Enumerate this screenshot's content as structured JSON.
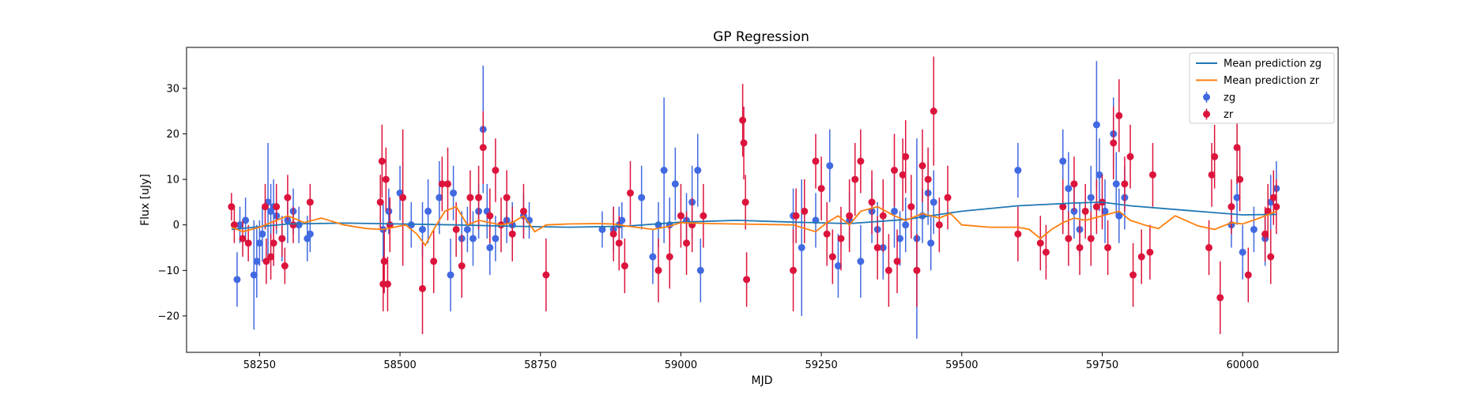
{
  "chart_data": {
    "type": "scatter",
    "title": "GP Regression",
    "xlabel": "MJD",
    "ylabel": "Flux [uJy]",
    "xlim": [
      58120,
      60170
    ],
    "ylim": [
      -28,
      39
    ],
    "xticks": [
      58250,
      58500,
      58750,
      59000,
      59250,
      59500,
      59750,
      60000
    ],
    "yticks": [
      -20,
      -10,
      0,
      10,
      20,
      30
    ],
    "grid": false,
    "legend": {
      "placement": "top-right",
      "entries": [
        {
          "label": "Mean prediction zg",
          "kind": "line",
          "color": "#1f77b4"
        },
        {
          "label": "Mean prediction zr",
          "kind": "line",
          "color": "#ff7f0e"
        },
        {
          "label": "zg",
          "kind": "errorbar",
          "color": "#4169e1"
        },
        {
          "label": "zr",
          "kind": "errorbar",
          "color": "#dc143c"
        }
      ]
    },
    "series": [
      {
        "name": "Mean prediction zg",
        "kind": "line",
        "color": "#1f77b4",
        "x": [
          58200,
          58300,
          58400,
          58500,
          58600,
          58700,
          58800,
          58900,
          59000,
          59100,
          59200,
          59300,
          59400,
          59500,
          59600,
          59700,
          59750,
          59800,
          59900,
          60000,
          60060
        ],
        "y": [
          -1.0,
          0.2,
          0.4,
          0.2,
          0.0,
          -0.3,
          -0.5,
          -0.3,
          0.6,
          1.0,
          0.6,
          0.3,
          1.2,
          3.0,
          4.2,
          4.8,
          5.0,
          4.2,
          3.2,
          2.2,
          2.3
        ]
      },
      {
        "name": "Mean prediction zr",
        "kind": "line",
        "color": "#ff7f0e",
        "x": [
          58200,
          58220,
          58250,
          58280,
          58300,
          58330,
          58360,
          58400,
          58440,
          58470,
          58490,
          58510,
          58530,
          58545,
          58560,
          58580,
          58600,
          58620,
          58640,
          58660,
          58680,
          58700,
          58720,
          58740,
          58760,
          58800,
          58850,
          58880,
          58900,
          58920,
          58950,
          58980,
          59000,
          59050,
          59100,
          59150,
          59200,
          59240,
          59260,
          59280,
          59300,
          59320,
          59350,
          59380,
          59400,
          59430,
          59460,
          59480,
          59500,
          59550,
          59600,
          59620,
          59640,
          59660,
          59680,
          59700,
          59720,
          59750,
          59780,
          59800,
          59830,
          59850,
          59880,
          59920,
          59950,
          59980,
          60000,
          60030,
          60060
        ],
        "y": [
          -0.5,
          -1.5,
          -0.5,
          1.0,
          2.0,
          0.5,
          1.5,
          0.0,
          -0.8,
          -1.0,
          -0.5,
          0.0,
          -2.0,
          -4.5,
          -1.0,
          3.0,
          4.0,
          0.0,
          1.0,
          0.5,
          0.0,
          0.5,
          2.0,
          -1.5,
          0.0,
          0.2,
          0.3,
          0.2,
          -0.2,
          -0.5,
          -1.0,
          -0.3,
          0.5,
          0.3,
          0.2,
          0.1,
          0.0,
          -1.5,
          0.5,
          2.0,
          0.0,
          3.0,
          4.0,
          2.0,
          1.0,
          2.5,
          1.5,
          2.5,
          0.0,
          -0.5,
          -0.5,
          -1.0,
          -3.0,
          -1.0,
          0.5,
          1.5,
          1.0,
          2.0,
          3.0,
          1.0,
          -0.2,
          -0.8,
          2.0,
          -0.2,
          -1.0,
          0.5,
          0.2,
          1.5,
          3.0
        ]
      },
      {
        "name": "zg",
        "kind": "errorbar",
        "color": "#4169e1",
        "points": [
          [
            58210,
            -12,
            6
          ],
          [
            58215,
            0,
            4
          ],
          [
            58225,
            1,
            5
          ],
          [
            58240,
            -11,
            12
          ],
          [
            58245,
            -8,
            8
          ],
          [
            58250,
            -4,
            5
          ],
          [
            58255,
            -2,
            6
          ],
          [
            58265,
            5,
            13
          ],
          [
            58270,
            3,
            6
          ],
          [
            58275,
            4,
            6
          ],
          [
            58280,
            2,
            4
          ],
          [
            58290,
            -3,
            5
          ],
          [
            58300,
            1,
            5
          ],
          [
            58310,
            3,
            5
          ],
          [
            58320,
            0,
            4
          ],
          [
            58335,
            -3,
            5
          ],
          [
            58340,
            -2,
            4
          ],
          [
            58470,
            -1,
            6
          ],
          [
            58480,
            3,
            5
          ],
          [
            58500,
            7,
            6
          ],
          [
            58520,
            0,
            5
          ],
          [
            58540,
            -1,
            6
          ],
          [
            58550,
            3,
            7
          ],
          [
            58570,
            6,
            8
          ],
          [
            58590,
            -11,
            8
          ],
          [
            58595,
            7,
            6
          ],
          [
            58610,
            -3,
            6
          ],
          [
            58620,
            -1,
            5
          ],
          [
            58630,
            -3,
            6
          ],
          [
            58640,
            3,
            6
          ],
          [
            58648,
            21,
            14
          ],
          [
            58655,
            3,
            6
          ],
          [
            58660,
            -5,
            6
          ],
          [
            58670,
            -3,
            5
          ],
          [
            58690,
            1,
            5
          ],
          [
            58700,
            0,
            5
          ],
          [
            58720,
            2,
            5
          ],
          [
            58730,
            1,
            4
          ],
          [
            58860,
            -1,
            4
          ],
          [
            58880,
            -1,
            5
          ],
          [
            58890,
            0,
            4
          ],
          [
            58895,
            1,
            4
          ],
          [
            58930,
            6,
            7
          ],
          [
            58950,
            -7,
            6
          ],
          [
            58960,
            0,
            5
          ],
          [
            58970,
            12,
            16
          ],
          [
            58980,
            0,
            6
          ],
          [
            58990,
            9,
            8
          ],
          [
            59010,
            1,
            6
          ],
          [
            59020,
            5,
            8
          ],
          [
            59030,
            12,
            8
          ],
          [
            59035,
            -10,
            7
          ],
          [
            59200,
            2,
            6
          ],
          [
            59215,
            -5,
            15
          ],
          [
            59240,
            1,
            6
          ],
          [
            59265,
            13,
            8
          ],
          [
            59280,
            -9,
            7
          ],
          [
            59300,
            1,
            6
          ],
          [
            59320,
            -8,
            8
          ],
          [
            59340,
            3,
            7
          ],
          [
            59350,
            -1,
            6
          ],
          [
            59360,
            -5,
            7
          ],
          [
            59380,
            3,
            8
          ],
          [
            59390,
            -3,
            6
          ],
          [
            59400,
            0,
            6
          ],
          [
            59420,
            -3,
            22
          ],
          [
            59430,
            2,
            6
          ],
          [
            59440,
            7,
            7
          ],
          [
            59445,
            -4,
            6
          ],
          [
            59450,
            5,
            7
          ],
          [
            59600,
            12,
            6
          ],
          [
            59680,
            14,
            7
          ],
          [
            59690,
            8,
            8
          ],
          [
            59700,
            3,
            6
          ],
          [
            59710,
            -1,
            6
          ],
          [
            59730,
            6,
            7
          ],
          [
            59740,
            22,
            14
          ],
          [
            59745,
            11,
            8
          ],
          [
            59755,
            3,
            7
          ],
          [
            59770,
            20,
            8
          ],
          [
            59775,
            9,
            7
          ],
          [
            59780,
            2,
            6
          ],
          [
            59790,
            6,
            7
          ],
          [
            59980,
            0,
            5
          ],
          [
            59990,
            6,
            6
          ],
          [
            60000,
            -6,
            6
          ],
          [
            60020,
            -1,
            5
          ],
          [
            60040,
            -3,
            6
          ],
          [
            60050,
            5,
            6
          ],
          [
            60060,
            8,
            6
          ]
        ]
      },
      {
        "name": "zr",
        "kind": "errorbar",
        "color": "#dc143c",
        "points": [
          [
            58200,
            4,
            3
          ],
          [
            58205,
            0,
            4
          ],
          [
            58220,
            -3,
            4
          ],
          [
            58230,
            -4,
            4
          ],
          [
            58260,
            4,
            5
          ],
          [
            58262,
            -8,
            5
          ],
          [
            58270,
            -7,
            5
          ],
          [
            58275,
            -4,
            5
          ],
          [
            58280,
            4,
            5
          ],
          [
            58290,
            -3,
            4
          ],
          [
            58295,
            -9,
            4
          ],
          [
            58300,
            6,
            5
          ],
          [
            58310,
            0,
            4
          ],
          [
            58340,
            5,
            4
          ],
          [
            58465,
            5,
            6
          ],
          [
            58468,
            14,
            8
          ],
          [
            58470,
            -13,
            6
          ],
          [
            58472,
            -8,
            7
          ],
          [
            58475,
            10,
            7
          ],
          [
            58478,
            -13,
            6
          ],
          [
            58482,
            0,
            6
          ],
          [
            58505,
            6,
            15
          ],
          [
            58540,
            -14,
            10
          ],
          [
            58560,
            -8,
            7
          ],
          [
            58575,
            9,
            6
          ],
          [
            58585,
            9,
            8
          ],
          [
            58600,
            -1,
            6
          ],
          [
            58610,
            -9,
            7
          ],
          [
            58625,
            6,
            6
          ],
          [
            58640,
            6,
            7
          ],
          [
            58648,
            17,
            8
          ],
          [
            58660,
            2,
            6
          ],
          [
            58670,
            12,
            7
          ],
          [
            58680,
            0,
            6
          ],
          [
            58690,
            6,
            6
          ],
          [
            58700,
            -2,
            6
          ],
          [
            58720,
            3,
            6
          ],
          [
            58760,
            -11,
            8
          ],
          [
            58880,
            -2,
            6
          ],
          [
            58890,
            -4,
            6
          ],
          [
            58900,
            -9,
            6
          ],
          [
            58910,
            7,
            7
          ],
          [
            58960,
            -10,
            7
          ],
          [
            58980,
            -7,
            7
          ],
          [
            59000,
            2,
            7
          ],
          [
            59010,
            -4,
            7
          ],
          [
            59020,
            0,
            6
          ],
          [
            59040,
            2,
            7
          ],
          [
            59110,
            23,
            8
          ],
          [
            59112,
            18,
            8
          ],
          [
            59115,
            5,
            6
          ],
          [
            59117,
            -12,
            6
          ],
          [
            59200,
            -10,
            9
          ],
          [
            59205,
            2,
            6
          ],
          [
            59220,
            3,
            7
          ],
          [
            59240,
            14,
            6
          ],
          [
            59250,
            8,
            7
          ],
          [
            59260,
            -2,
            7
          ],
          [
            59270,
            -7,
            6
          ],
          [
            59285,
            -3,
            7
          ],
          [
            59300,
            2,
            8
          ],
          [
            59310,
            10,
            8
          ],
          [
            59320,
            14,
            7
          ],
          [
            59340,
            5,
            7
          ],
          [
            59350,
            -5,
            7
          ],
          [
            59360,
            2,
            8
          ],
          [
            59370,
            -10,
            8
          ],
          [
            59380,
            12,
            8
          ],
          [
            59385,
            -8,
            7
          ],
          [
            59395,
            11,
            8
          ],
          [
            59400,
            15,
            8
          ],
          [
            59410,
            4,
            7
          ],
          [
            59420,
            -10,
            8
          ],
          [
            59430,
            13,
            8
          ],
          [
            59440,
            10,
            7
          ],
          [
            59450,
            25,
            12
          ],
          [
            59460,
            0,
            6
          ],
          [
            59475,
            6,
            7
          ],
          [
            59600,
            -2,
            6
          ],
          [
            59640,
            -4,
            6
          ],
          [
            59650,
            -6,
            6
          ],
          [
            59680,
            4,
            6
          ],
          [
            59690,
            -3,
            6
          ],
          [
            59700,
            9,
            6
          ],
          [
            59710,
            -5,
            6
          ],
          [
            59720,
            3,
            6
          ],
          [
            59730,
            -3,
            6
          ],
          [
            59740,
            4,
            6
          ],
          [
            59750,
            5,
            6
          ],
          [
            59760,
            -5,
            6
          ],
          [
            59770,
            18,
            8
          ],
          [
            59780,
            24,
            8
          ],
          [
            59790,
            9,
            6
          ],
          [
            59800,
            15,
            7
          ],
          [
            59805,
            -11,
            7
          ],
          [
            59820,
            -7,
            6
          ],
          [
            59835,
            -6,
            6
          ],
          [
            59840,
            11,
            7
          ],
          [
            59940,
            -5,
            6
          ],
          [
            59945,
            11,
            7
          ],
          [
            59950,
            15,
            7
          ],
          [
            59960,
            -16,
            8
          ],
          [
            59980,
            4,
            6
          ],
          [
            59990,
            17,
            8
          ],
          [
            59995,
            10,
            7
          ],
          [
            60010,
            -11,
            6
          ],
          [
            60040,
            -2,
            6
          ],
          [
            60045,
            3,
            6
          ],
          [
            60050,
            -7,
            6
          ],
          [
            60055,
            6,
            6
          ],
          [
            60060,
            4,
            6
          ]
        ]
      }
    ]
  }
}
